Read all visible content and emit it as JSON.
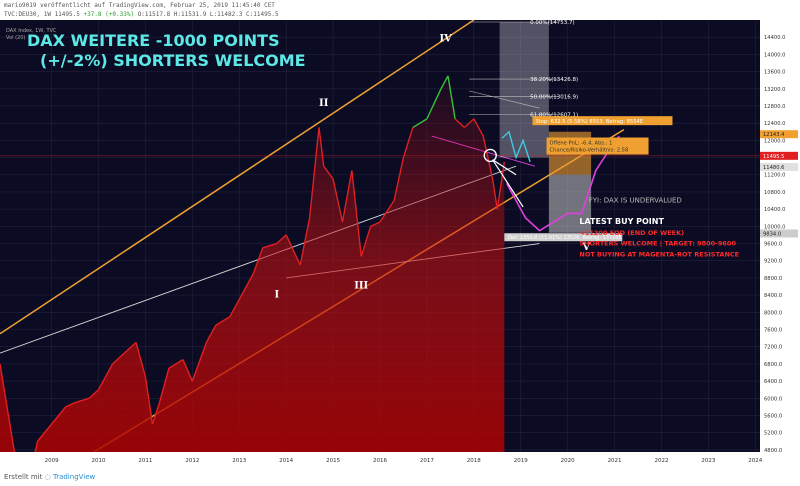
{
  "header": {
    "published_line": "mario9019 veröffentlicht auf TradingView.com, Februar 25, 2019 11:45:40 CET",
    "symbol_line": "TVC:DEU30, 1W 11495.5",
    "change": "+37.8 (+0.33%)",
    "ohlc": "O:11517.8 H:11531.9 L:11482.3 C:11495.5"
  },
  "legend": {
    "line1": "DAX Index, 1W, TVC",
    "line2": "Vol (20)"
  },
  "headline": {
    "line1": "DAX WEITERE -1000 POINTS",
    "line2": "(+/-2%) SHORTERS WELCOME"
  },
  "wave_labels": {
    "I": "I",
    "II": "II",
    "III": "III",
    "IV": "IV",
    "V": "V"
  },
  "fib_labels": {
    "f0": "0.00%(14753.7)",
    "f382": "38.20%(13426.8)",
    "f50": "50.00%(13016.9)",
    "f618": "61.80%(12607.1)"
  },
  "annotations": {
    "stop_box": "Stop: 632.5 (5.58%) 8553, Betrag: 8554E",
    "target_box_1": "Offene PnL: -6.4, Abs.: 1",
    "target_box_2": "Chance/Risiko-Verhältnis: 2.58",
    "target_bottom": "Ziel: 1350.8 (11.91%) 13526, Betrag: 13726E",
    "fyi": "FYI: DAX IS UNDERVALUED",
    "buy_title": "LATEST BUY POINT",
    "buy_1": "<11200 EOD (END OF WEEK)",
    "buy_2": "SHORTERS WELCOME | TARGET: 9800-9600",
    "buy_3": "NOT BUYING AT MAGENTA-ROT RESISTANCE"
  },
  "price_tags": {
    "p1": "12143.4",
    "p2": "11495.5",
    "p3": "11480.6",
    "p4": "9834.0"
  },
  "footer": {
    "prefix": "Erstellt mit",
    "brand": "TradingView"
  },
  "colors": {
    "background": "#0b0b23",
    "grid": "#22223c",
    "candles_up": "#39c239",
    "candles_down": "#e02020",
    "channel": "#f0a030",
    "trend_white": "#d8d8d8",
    "magenta": "#e040e0",
    "cyan": "#40c8e0",
    "fill_red": "#cc1010",
    "headline": "#5de8e8",
    "buy_red": "#ff2a2a"
  },
  "chart_data": {
    "type": "line",
    "title": "DAX WEITERE -1000 POINTS (+/-2%) SHORTERS WELCOME",
    "xlabel": "",
    "ylabel": "",
    "x_ticks": [
      "2009",
      "2010",
      "2011",
      "2012",
      "2013",
      "2014",
      "2015",
      "2016",
      "2017",
      "2018",
      "2019",
      "2020",
      "2021",
      "2022",
      "2023",
      "2024"
    ],
    "y_ticks": [
      14400,
      14000,
      13600,
      13200,
      12800,
      12400,
      12000,
      11600,
      11200,
      10800,
      10400,
      10000,
      9600,
      9200,
      8800,
      8400,
      8000,
      7600,
      7200,
      6800,
      6400,
      6000,
      5600,
      5200,
      4800
    ],
    "xlim": [
      2008.4,
      2024.6
    ],
    "ylim": [
      4750,
      14800
    ],
    "grid": true,
    "series": [
      {
        "name": "",
        "x": [
          2008.4,
          2008.7,
          2009.0,
          2009.2,
          2009.5,
          2009.8,
          2010.0,
          2010.3,
          2010.5,
          2010.8,
          2011.0,
          2011.3,
          2011.5,
          2011.65,
          2011.8,
          2012.0,
          2012.3,
          2012.5,
          2012.8,
          2013.0,
          2013.3,
          2013.5,
          2013.8,
          2014.0,
          2014.3,
          2014.5,
          2014.8,
          2015.0,
          2015.2,
          2015.3,
          2015.5,
          2015.7,
          2015.9,
          2016.1,
          2016.3,
          2016.5,
          2016.8,
          2017.0,
          2017.2,
          2017.5,
          2017.8,
          2017.95,
          2018.1,
          2018.3,
          2018.5,
          2018.7,
          2018.9,
          2019.0,
          2019.15
        ],
        "values": [
          6800,
          4800,
          4000,
          5000,
          5400,
          5800,
          5900,
          6000,
          6200,
          6800,
          7000,
          7300,
          6500,
          5400,
          5900,
          6700,
          6900,
          6400,
          7300,
          7700,
          7900,
          8300,
          8900,
          9500,
          9600,
          9800,
          9100,
          10200,
          12300,
          11400,
          11100,
          10100,
          11300,
          9300,
          10000,
          10100,
          10600,
          11600,
          12300,
          12500,
          13200,
          13500,
          12500,
          12300,
          12500,
          12100,
          11100,
          10400,
          11500
        ]
      },
      {
        "name": "",
        "x": [
          2019.2,
          2019.6,
          2019.9,
          2020.2,
          2020.5,
          2020.8,
          2021.1,
          2021.4,
          2021.6
        ],
        "values": [
          11000,
          10200,
          9900,
          10100,
          10300,
          10300,
          11300,
          11800,
          12100
        ]
      }
    ]
  }
}
